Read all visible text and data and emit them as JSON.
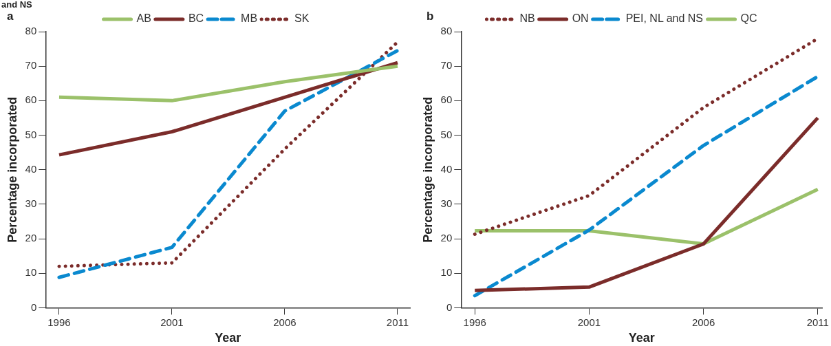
{
  "chart_data": [
    {
      "type": "line",
      "title": "and NS",
      "annotations": [
        "a"
      ],
      "xlabel": "Year",
      "ylabel": "Percentage incorporated",
      "x": [
        1996,
        2001,
        2006,
        2011
      ],
      "xlim": [
        1995.4,
        2011.55
      ],
      "xticks": [
        1996,
        2001,
        2006,
        2011
      ],
      "ylim": [
        0,
        80
      ],
      "yticks": [
        0,
        10,
        20,
        30,
        40,
        50,
        60,
        70,
        80
      ],
      "grid": false,
      "legend": "top",
      "marker": "none",
      "series": [
        {
          "name": "AB",
          "color": "#9bc16a",
          "line_style": "solid",
          "values": [
            61,
            60,
            65.5,
            70
          ]
        },
        {
          "name": "BC",
          "color": "#7b2c2a",
          "line_style": "solid",
          "values": [
            44.3,
            51,
            61,
            71
          ]
        },
        {
          "name": "MB",
          "color": "#0a89cf",
          "line_style": "dashed",
          "values": [
            8.8,
            17.5,
            57,
            74.5
          ]
        },
        {
          "name": "SK",
          "color": "#7b2c2a",
          "line_style": "dotted",
          "values": [
            12,
            13,
            46,
            77
          ]
        }
      ]
    },
    {
      "type": "line",
      "annotations": [
        "b"
      ],
      "xlabel": "Year",
      "ylabel": "Percentage incorporated",
      "x": [
        1996,
        2001,
        2006,
        2011
      ],
      "xlim": [
        1995.4,
        2011.2
      ],
      "xticks": [
        1996,
        2001,
        2006,
        2011
      ],
      "ylim": [
        0,
        80
      ],
      "yticks": [
        0,
        10,
        20,
        30,
        40,
        50,
        60,
        70,
        80
      ],
      "grid": false,
      "legend": "top",
      "marker": "none",
      "series": [
        {
          "name": "NB",
          "color": "#7b2c2a",
          "line_style": "dotted",
          "values": [
            21.3,
            32.5,
            58,
            78
          ]
        },
        {
          "name": "ON",
          "color": "#7b2c2a",
          "line_style": "solid",
          "values": [
            5,
            6,
            18.5,
            55
          ]
        },
        {
          "name": "PEI, NL and NS",
          "color": "#0a89cf",
          "line_style": "dashed",
          "values": [
            3.5,
            22.5,
            47,
            67
          ]
        },
        {
          "name": "QC",
          "color": "#9bc16a",
          "line_style": "solid",
          "values": [
            22.3,
            22.3,
            18.5,
            34.3
          ]
        }
      ]
    }
  ]
}
